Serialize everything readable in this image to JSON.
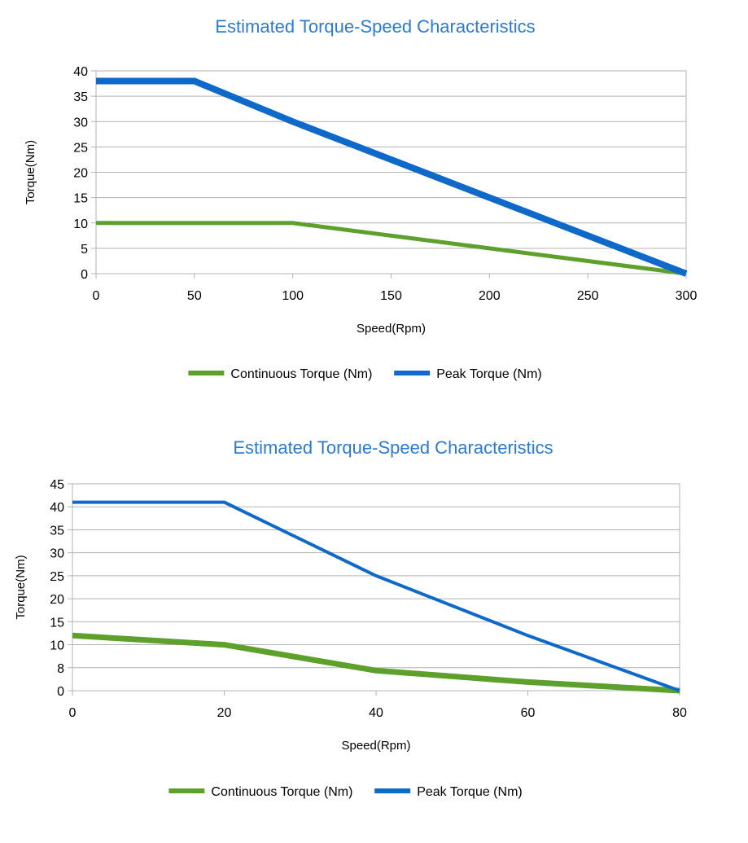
{
  "colors": {
    "title": "#2b7bd4",
    "continuous": "#5ea02c",
    "peak": "#0e69c9",
    "grid": "#b3b3b3",
    "axis": "#b3b3b3"
  },
  "chart_data": [
    {
      "type": "line",
      "title": "Estimated Torque-Speed Characteristics",
      "xlabel": "Speed(Rpm)",
      "ylabel": "Torque(Nm)",
      "xlim": [
        0,
        300
      ],
      "ylim": [
        0,
        40
      ],
      "x_ticks": [
        "0",
        "50",
        "100",
        "150",
        "200",
        "250",
        "300"
      ],
      "y_ticks": [
        "0",
        "5",
        "10",
        "15",
        "20",
        "25",
        "30",
        "35",
        "40"
      ],
      "grid": true,
      "legend_position": "bottom",
      "series": [
        {
          "name": "Continuous Torque (Nm)",
          "color": "#5ea02c",
          "x": [
            0,
            100,
            200,
            300
          ],
          "y": [
            10,
            10,
            5,
            0
          ]
        },
        {
          "name": "Peak Torque (Nm)",
          "color": "#0e69c9",
          "x": [
            0,
            50,
            100,
            200,
            300
          ],
          "y": [
            38,
            38,
            30,
            15,
            0
          ]
        }
      ]
    },
    {
      "type": "line",
      "title": "Estimated Torque-Speed Characteristics",
      "xlabel": "Speed(Rpm)",
      "ylabel": "Torque(Nm)",
      "xlim": [
        0,
        80
      ],
      "ylim": [
        0,
        45
      ],
      "x_ticks": [
        "0",
        "20",
        "40",
        "60",
        "80"
      ],
      "y_ticks": [
        "0",
        "8",
        "10",
        "15",
        "20",
        "25",
        "30",
        "35",
        "40",
        "45"
      ],
      "grid": true,
      "legend_position": "bottom",
      "series": [
        {
          "name": "Continuous Torque (Nm)",
          "color": "#5ea02c",
          "x": [
            0,
            20,
            40,
            60,
            80
          ],
          "y": [
            12,
            10,
            7,
            3,
            0
          ]
        },
        {
          "name": "Peak Torque (Nm)",
          "color": "#0e69c9",
          "x": [
            0,
            20,
            40,
            60,
            80
          ],
          "y": [
            41,
            41,
            25,
            12,
            0
          ]
        }
      ]
    }
  ]
}
